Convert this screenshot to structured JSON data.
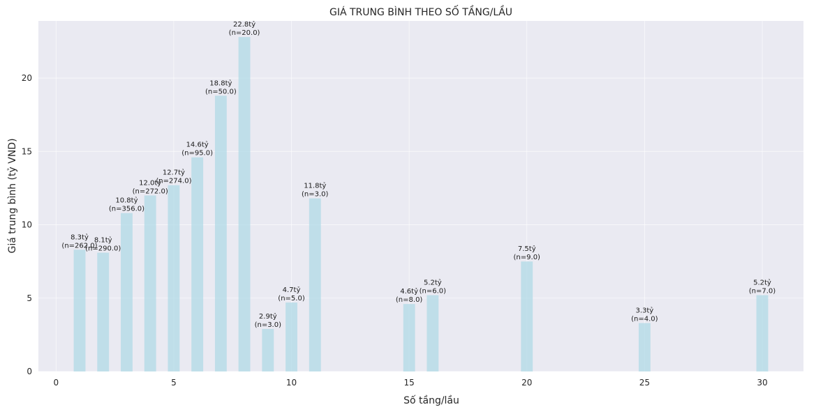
{
  "colors": {
    "plot_background": "#eaeaf2",
    "grid": "#ffffff",
    "bar": "#add8e6",
    "text": "#262626",
    "label_text": "#1a1a1a"
  },
  "chart_data": {
    "type": "bar",
    "title": "GIÁ TRUNG BÌNH THEO SỐ TẦNG/LẦU",
    "xlabel": "Số tầng/lầu",
    "ylabel": "Giá trung bình (tỷ VND)",
    "x": [
      1,
      2,
      3,
      4,
      5,
      6,
      7,
      8,
      9,
      10,
      11,
      15,
      16,
      20,
      25,
      30
    ],
    "values": [
      8.3,
      8.1,
      10.8,
      12.0,
      12.7,
      14.6,
      18.8,
      22.8,
      2.9,
      4.7,
      11.8,
      4.6,
      5.2,
      7.5,
      3.3,
      5.2
    ],
    "value_labels": [
      "8.3tỷ",
      "8.1tỷ",
      "10.8tỷ",
      "12.0tỷ",
      "12.7tỷ",
      "14.6tỷ",
      "18.8tỷ",
      "22.8tỷ",
      "2.9tỷ",
      "4.7tỷ",
      "11.8tỷ",
      "4.6tỷ",
      "5.2tỷ",
      "7.5tỷ",
      "3.3tỷ",
      "5.2tỷ"
    ],
    "count_labels": [
      "(n=262.0)",
      "(n=290.0)",
      "(n=356.0)",
      "(n=272.0)",
      "(n=274.0)",
      "(n=95.0)",
      "(n=50.0)",
      "(n=20.0)",
      "(n=3.0)",
      "(n=5.0)",
      "(n=3.0)",
      "(n=8.0)",
      "(n=6.0)",
      "(n=9.0)",
      "(n=4.0)",
      "(n=7.0)"
    ],
    "xticks": [
      0,
      5,
      10,
      15,
      20,
      25,
      30
    ],
    "yticks": [
      0,
      5,
      10,
      15,
      20
    ],
    "xlim": [
      -0.75,
      31.75
    ],
    "ylim": [
      0,
      23.9
    ],
    "bar_width": 0.5,
    "grid": true,
    "legend": "none"
  }
}
